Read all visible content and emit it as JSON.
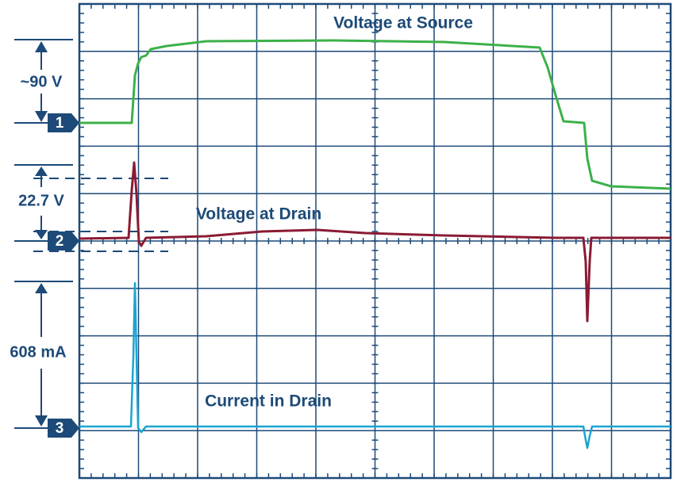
{
  "labels": {
    "source": "Voltage at Source",
    "drain": "Voltage at Drain",
    "current": "Current in Drain"
  },
  "scales": [
    "~90 V",
    "22.7 V",
    "608 mA"
  ],
  "channels": [
    "1",
    "2",
    "3"
  ]
}
